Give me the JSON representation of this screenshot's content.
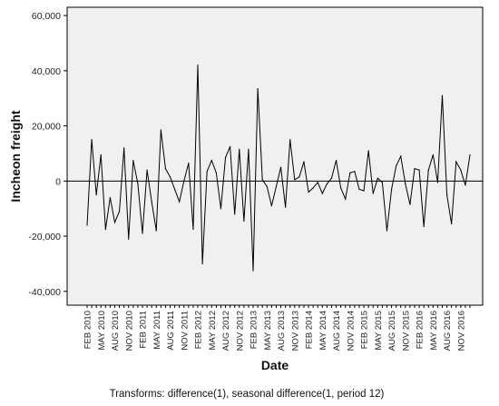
{
  "chart_data": {
    "type": "line",
    "xlabel": "Date",
    "ylabel": "Incheon freight",
    "ylim": [
      -45000,
      63000
    ],
    "yticks": [
      -40000,
      -20000,
      0,
      20000,
      40000,
      60000
    ],
    "ytick_labels": [
      "-40,000",
      "-20,000",
      "0",
      "20,000",
      "40,000",
      "60,000"
    ],
    "reference_line": 0,
    "grid": false,
    "xtick_labels": [
      "FEB 2010",
      "MAY 2010",
      "AUG 2010",
      "NOV 2010",
      "FEB 2011",
      "MAY 2011",
      "AUG 2011",
      "NOV 2011",
      "FEB 2012",
      "MAY 2012",
      "AUG 2012",
      "NOV 2012",
      "FEB 2013",
      "MAY 2013",
      "AUG 2013",
      "NOV 2013",
      "FEB 2014",
      "MAY 2014",
      "AUG 2014",
      "NOV 2014",
      "FEB 2015",
      "MAY 2015",
      "AUG 2015",
      "NOV 2015",
      "FEB 2016",
      "MAY 2016",
      "AUG 2016",
      "NOV 2016"
    ],
    "x_start": "2010-02",
    "x_end": "2016-12",
    "series": [
      {
        "values": [
          -16000,
          15000,
          -5000,
          9500,
          -17500,
          -6000,
          -15000,
          -11000,
          12000,
          -21000,
          7500,
          -1000,
          -19000,
          4000,
          -7500,
          -18000,
          18500,
          4500,
          1500,
          -3000,
          -7500,
          0,
          6500,
          -17500,
          42000,
          -30000,
          3500,
          7500,
          3000,
          -10000,
          8500,
          12500,
          -12000,
          11500,
          -14500,
          11500,
          -32500,
          33500,
          500,
          -2000,
          -9000,
          -2000,
          5000,
          -9500,
          15000,
          500,
          1500,
          7000,
          -4000,
          -2500,
          -500,
          -4500,
          -1000,
          1000,
          7500,
          -2500,
          -6500,
          3000,
          3500,
          -3000,
          -3500,
          11000,
          -4500,
          1000,
          -500,
          -18000,
          -3000,
          5500,
          9000,
          -1000,
          -8500,
          4500,
          4000,
          -16500,
          4000,
          9500,
          -500,
          31000,
          -5000,
          -15500,
          7000,
          4000,
          -1500,
          9500
        ]
      }
    ],
    "footnote": "Transforms: difference(1), seasonal difference(1, period 12)"
  }
}
